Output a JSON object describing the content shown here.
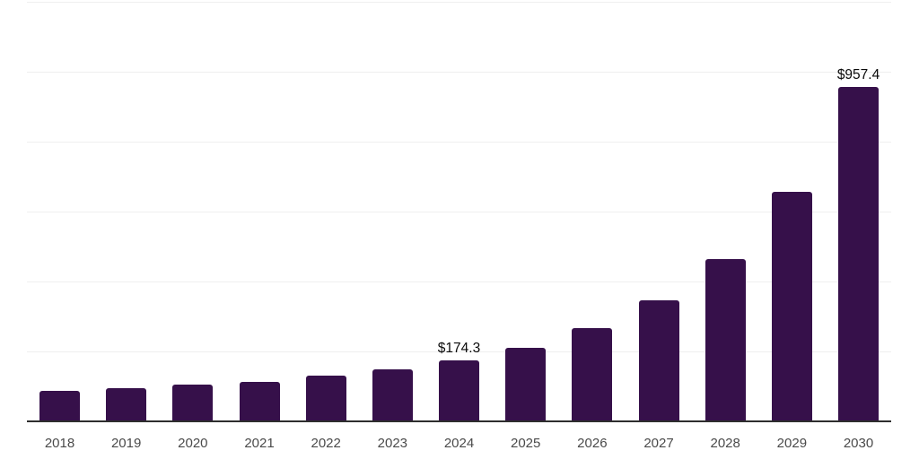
{
  "chart_data": {
    "type": "bar",
    "title": "",
    "categories": [
      "2018",
      "2019",
      "2020",
      "2021",
      "2022",
      "2023",
      "2024",
      "2025",
      "2026",
      "2027",
      "2028",
      "2029",
      "2030"
    ],
    "values": [
      88,
      94,
      104,
      113,
      132,
      149,
      174.3,
      210,
      267,
      345,
      464,
      656,
      957.4
    ],
    "value_labels": [
      "",
      "",
      "",
      "",
      "",
      "",
      "$174.3",
      "",
      "",
      "",
      "",
      "",
      "$957.4"
    ],
    "xlabel": "",
    "ylabel": "",
    "ylim": [
      0,
      1200
    ],
    "gridline_step": 200,
    "grid": "horizontal",
    "y_tick_labels_shown": false,
    "legend": "none"
  },
  "colors": {
    "bar": "#36104A",
    "gridline": "#efefef",
    "axis_line": "#2e2e2e",
    "tick_label": "#4a4a4a",
    "value_label": "#0a0a0a",
    "background": "#ffffff"
  }
}
